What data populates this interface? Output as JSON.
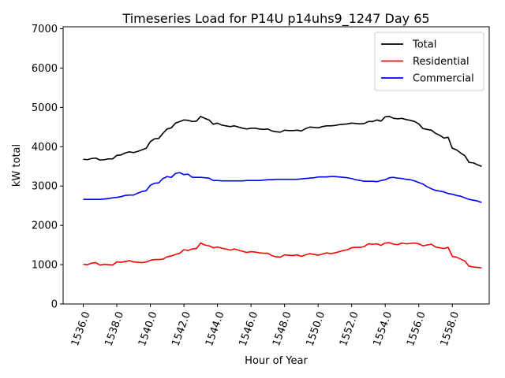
{
  "chart_data": {
    "type": "line",
    "title": "Timeseries Load for P14U p14uhs9_1247  Day 65",
    "xlabel": "Hour of Year",
    "ylabel": "kW total",
    "xlim": [
      1534.8,
      1560.2
    ],
    "ylim": [
      0,
      7050
    ],
    "xticks": [
      1536,
      1538,
      1540,
      1542,
      1544,
      1546,
      1548,
      1550,
      1552,
      1554,
      1556,
      1558
    ],
    "xtick_labels": [
      "1536.0",
      "1538.0",
      "1540.0",
      "1542.0",
      "1544.0",
      "1546.0",
      "1548.0",
      "1550.0",
      "1552.0",
      "1554.0",
      "1556.0",
      "1558.0"
    ],
    "yticks": [
      0,
      1000,
      2000,
      3000,
      4000,
      5000,
      6000,
      7000
    ],
    "ytick_labels": [
      "0",
      "1000",
      "2000",
      "3000",
      "4000",
      "5000",
      "6000",
      "7000"
    ],
    "legend_position": "top-right",
    "x_start": 1536.0,
    "x_step": 0.25,
    "series": [
      {
        "name": "Total",
        "color": "#000000",
        "values": [
          3680,
          3670,
          3700,
          3710,
          3660,
          3670,
          3690,
          3690,
          3780,
          3790,
          3840,
          3870,
          3850,
          3880,
          3920,
          3960,
          4130,
          4200,
          4210,
          4340,
          4450,
          4480,
          4600,
          4640,
          4680,
          4670,
          4640,
          4650,
          4770,
          4720,
          4680,
          4570,
          4600,
          4550,
          4530,
          4510,
          4530,
          4500,
          4470,
          4450,
          4470,
          4470,
          4450,
          4440,
          4450,
          4400,
          4380,
          4370,
          4420,
          4410,
          4410,
          4420,
          4400,
          4460,
          4500,
          4490,
          4480,
          4510,
          4530,
          4530,
          4540,
          4560,
          4570,
          4580,
          4600,
          4590,
          4580,
          4590,
          4640,
          4640,
          4680,
          4650,
          4760,
          4770,
          4720,
          4710,
          4720,
          4690,
          4670,
          4640,
          4580,
          4460,
          4440,
          4420,
          4340,
          4290,
          4220,
          4240,
          3960,
          3920,
          3840,
          3770,
          3600,
          3590,
          3540,
          3500
        ]
      },
      {
        "name": "Residential",
        "color": "#ff0000",
        "values": [
          1010,
          1000,
          1040,
          1050,
          990,
          1010,
          1000,
          990,
          1070,
          1060,
          1080,
          1100,
          1070,
          1060,
          1050,
          1070,
          1110,
          1130,
          1130,
          1140,
          1200,
          1220,
          1260,
          1290,
          1380,
          1360,
          1400,
          1410,
          1550,
          1500,
          1480,
          1430,
          1450,
          1420,
          1400,
          1370,
          1400,
          1370,
          1340,
          1310,
          1330,
          1320,
          1300,
          1290,
          1290,
          1230,
          1200,
          1190,
          1250,
          1240,
          1230,
          1250,
          1210,
          1250,
          1280,
          1260,
          1240,
          1270,
          1300,
          1280,
          1300,
          1330,
          1360,
          1380,
          1430,
          1440,
          1440,
          1460,
          1530,
          1520,
          1530,
          1490,
          1550,
          1560,
          1520,
          1510,
          1550,
          1530,
          1540,
          1550,
          1530,
          1480,
          1500,
          1520,
          1450,
          1430,
          1410,
          1440,
          1210,
          1190,
          1140,
          1090,
          960,
          940,
          930,
          920
        ]
      },
      {
        "name": "Commercial",
        "color": "#0000ff",
        "values": [
          2660,
          2660,
          2660,
          2660,
          2660,
          2670,
          2680,
          2700,
          2710,
          2730,
          2760,
          2770,
          2770,
          2820,
          2860,
          2880,
          3020,
          3070,
          3080,
          3190,
          3240,
          3220,
          3320,
          3340,
          3290,
          3300,
          3220,
          3220,
          3220,
          3210,
          3200,
          3140,
          3140,
          3130,
          3130,
          3130,
          3130,
          3130,
          3130,
          3140,
          3140,
          3140,
          3140,
          3150,
          3160,
          3160,
          3170,
          3170,
          3170,
          3170,
          3170,
          3170,
          3180,
          3190,
          3200,
          3210,
          3230,
          3230,
          3230,
          3240,
          3240,
          3230,
          3220,
          3210,
          3190,
          3160,
          3140,
          3120,
          3120,
          3120,
          3110,
          3140,
          3160,
          3210,
          3220,
          3200,
          3190,
          3170,
          3160,
          3130,
          3090,
          3050,
          2980,
          2930,
          2890,
          2870,
          2850,
          2810,
          2790,
          2760,
          2740,
          2700,
          2660,
          2640,
          2620,
          2580
        ]
      }
    ]
  }
}
